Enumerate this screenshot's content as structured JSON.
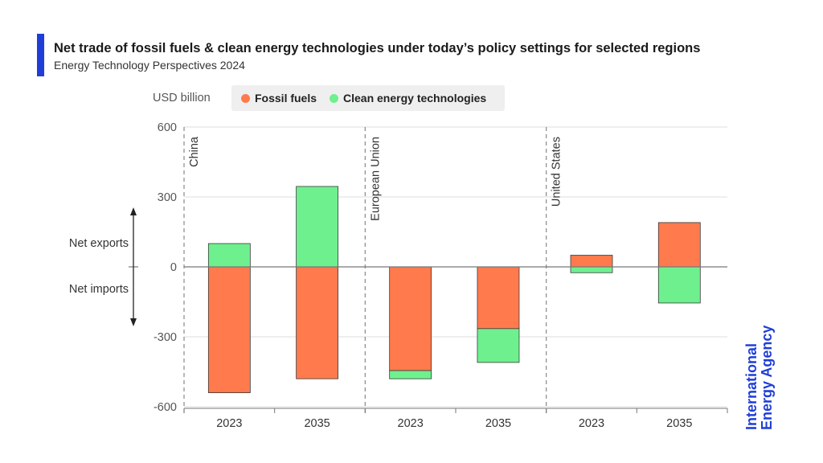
{
  "header": {
    "title": "Net trade of fossil fuels & clean energy technologies under today’s policy settings for selected regions",
    "subtitle": "Energy Technology Perspectives 2024"
  },
  "logo": {
    "text": "International Energy Agency"
  },
  "colors": {
    "accent": "#1f3ed8",
    "fossil": "#ff7a4d",
    "clean": "#6ef08f",
    "grid": "#dddddd"
  },
  "chart_data": {
    "type": "bar",
    "stacked": true,
    "unit_label": "USD billion",
    "ylim": [
      -600,
      600
    ],
    "yticks": [
      600,
      300,
      0,
      -300,
      -600
    ],
    "ytick_labels": [
      "600",
      "300",
      "0",
      "-300",
      "-600"
    ],
    "grid": true,
    "legend_placement": "top",
    "annotations": {
      "up": "Net exports",
      "down": "Net imports"
    },
    "groups": [
      "China",
      "European Union",
      "United States"
    ],
    "categories": [
      "2023",
      "2035",
      "2023",
      "2035",
      "2023",
      "2035"
    ],
    "series": [
      {
        "name": "Fossil fuels",
        "color": "#ff7a4d",
        "values": [
          -540,
          -480,
          -445,
          -265,
          50,
          190
        ]
      },
      {
        "name": "Clean energy technologies",
        "color": "#6ef08f",
        "values": [
          100,
          345,
          -35,
          -145,
          -25,
          -155
        ]
      }
    ]
  }
}
